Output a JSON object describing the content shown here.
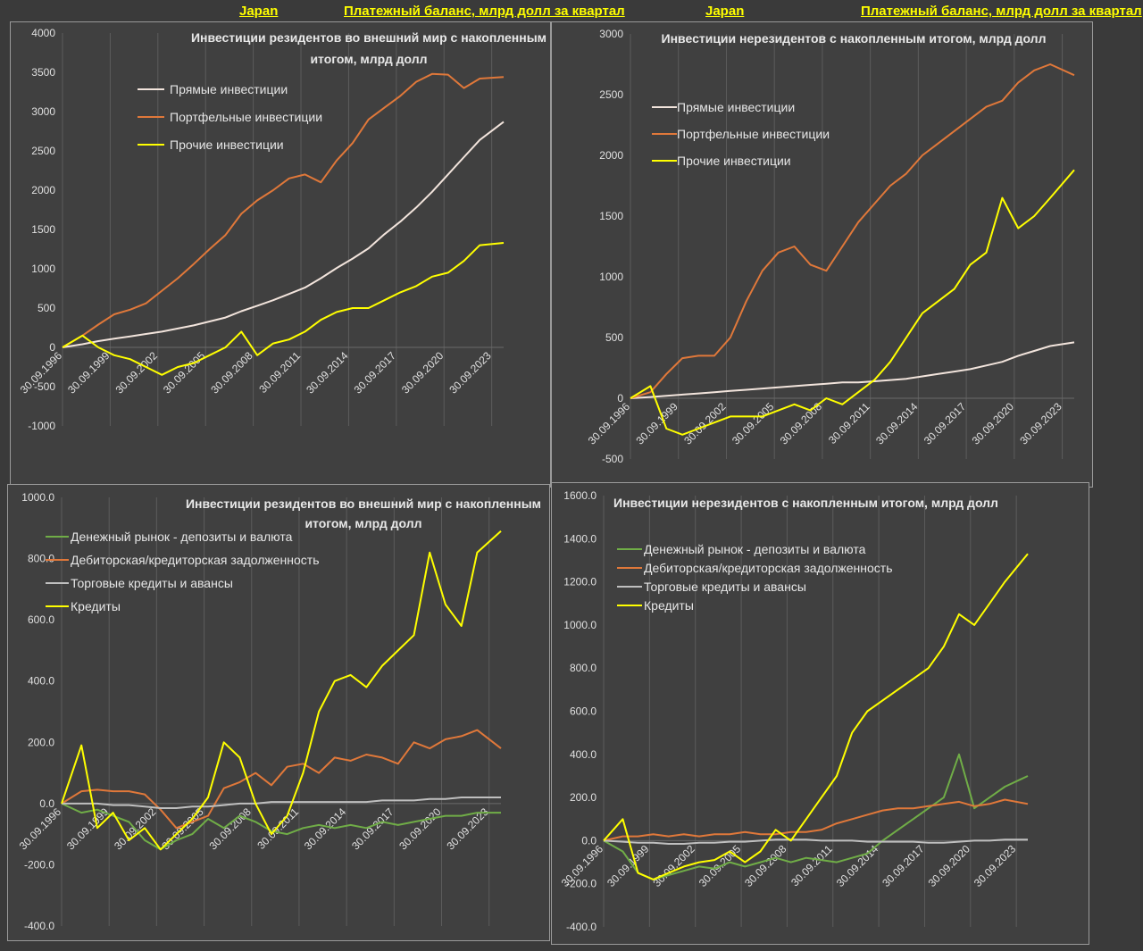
{
  "header": {
    "left_country": "Japan",
    "left_subtitle": "Платежный баланс, млрд долл за квартал",
    "right_country": "Japan",
    "right_subtitle": "Платежный баланс, млрд долл за квартал"
  },
  "colors": {
    "direct": "#f2e4dc",
    "portfolio": "#e0783a",
    "other": "#ffff00",
    "money_market": "#70ad47",
    "receivables": "#e0783a",
    "trade_credits": "#bfbfbf",
    "loans": "#ffff00"
  },
  "chart_data": [
    {
      "type": "line",
      "title": "Инвестиции резидентов во внешний мир с накопленным итогом, млрд долл",
      "ylim": [
        -1000,
        4000
      ],
      "yticks": [
        "4000",
        "3500",
        "3000",
        "2500",
        "2000",
        "1500",
        "1000",
        "500",
        "0",
        "-500",
        "-1000"
      ],
      "xticks": [
        "30.09.1996",
        "30.09.1999",
        "30.09.2002",
        "30.09.2005",
        "30.09.2008",
        "30.09.2011",
        "30.09.2014",
        "30.09.2017",
        "30.09.2020",
        "30.09.2023"
      ],
      "grid": "vertical",
      "legend": "top-left",
      "x": [
        1996.75,
        1998,
        1999,
        2000,
        2001,
        2002,
        2003,
        2004,
        2005,
        2006,
        2007,
        2008,
        2009,
        2010,
        2011,
        2012,
        2013,
        2014,
        2015,
        2016,
        2017,
        2018,
        2019,
        2020,
        2021,
        2022,
        2023,
        2024.5
      ],
      "series": [
        {
          "name": "Прямые инвестиции",
          "color_key": "direct",
          "values": [
            0,
            40,
            80,
            110,
            140,
            170,
            200,
            240,
            280,
            330,
            380,
            460,
            530,
            600,
            680,
            760,
            880,
            1010,
            1130,
            1260,
            1440,
            1600,
            1780,
            1980,
            2200,
            2420,
            2640,
            2870
          ]
        },
        {
          "name": "Портфельные инвестиции",
          "color_key": "portfolio",
          "values": [
            0,
            150,
            290,
            420,
            480,
            560,
            720,
            880,
            1060,
            1250,
            1430,
            1700,
            1870,
            2000,
            2150,
            2200,
            2100,
            2380,
            2600,
            2900,
            3050,
            3200,
            3380,
            3480,
            3470,
            3300,
            3420,
            3440
          ]
        },
        {
          "name": "Прочие инвестиции",
          "color_key": "other",
          "values": [
            0,
            150,
            0,
            -100,
            -150,
            -250,
            -350,
            -250,
            -200,
            -100,
            0,
            200,
            -100,
            50,
            100,
            200,
            350,
            450,
            500,
            500,
            600,
            700,
            780,
            900,
            950,
            1100,
            1300,
            1330
          ]
        }
      ]
    },
    {
      "type": "line",
      "title": "Инвестиции  нерезидентов с накопленным итогом, млрд долл",
      "ylim": [
        -500,
        3000
      ],
      "yticks": [
        "3000",
        "2500",
        "2000",
        "1500",
        "1000",
        "500",
        "0",
        "-500"
      ],
      "xticks": [
        "30.09.1996",
        "30.09.1999",
        "30.09.2002",
        "30.09.2005",
        "30.09.2008",
        "30.09.2011",
        "30.09.2014",
        "30.09.2017",
        "30.09.2020",
        "30.09.2023"
      ],
      "grid": "vertical",
      "legend": "top-left",
      "x": [
        1996.75,
        1998,
        1999,
        2000,
        2001,
        2002,
        2003,
        2004,
        2005,
        2006,
        2007,
        2008,
        2009,
        2010,
        2011,
        2012,
        2013,
        2014,
        2015,
        2016,
        2017,
        2018,
        2019,
        2020,
        2021,
        2022,
        2023,
        2024.5
      ],
      "series": [
        {
          "name": "Прямые инвестиции",
          "color_key": "direct",
          "values": [
            0,
            10,
            20,
            30,
            40,
            50,
            60,
            70,
            80,
            90,
            100,
            110,
            120,
            130,
            130,
            140,
            150,
            160,
            180,
            200,
            220,
            240,
            270,
            300,
            350,
            390,
            430,
            460
          ]
        },
        {
          "name": "Портфельные инвестиции",
          "color_key": "portfolio",
          "values": [
            0,
            50,
            200,
            330,
            350,
            350,
            500,
            800,
            1050,
            1200,
            1250,
            1100,
            1050,
            1250,
            1450,
            1600,
            1750,
            1850,
            2000,
            2100,
            2200,
            2300,
            2400,
            2450,
            2600,
            2700,
            2750,
            2660
          ]
        },
        {
          "name": "Прочие инвестиции",
          "color_key": "other",
          "values": [
            0,
            100,
            -250,
            -300,
            -250,
            -200,
            -150,
            -150,
            -150,
            -100,
            -50,
            -100,
            0,
            -50,
            50,
            150,
            300,
            500,
            700,
            800,
            900,
            1100,
            1200,
            1650,
            1400,
            1500,
            1650,
            1880
          ]
        }
      ]
    },
    {
      "type": "line",
      "title": "Инвестиции резидентов во внешний мир с накопленным итогом, млрд долл",
      "ylim": [
        -400,
        1000
      ],
      "yticks": [
        "1000.0",
        "800.0",
        "600.0",
        "400.0",
        "200.0",
        "0.0",
        "-200.0",
        "-400.0"
      ],
      "xticks": [
        "30.09.1996",
        "30.09.1999",
        "30.09.2002",
        "30.09.2005",
        "30.09.2008",
        "30.09.2011",
        "30.09.2014",
        "30.09.2017",
        "30.09.2020",
        "30.09.2023"
      ],
      "grid": "vertical",
      "legend": "top-left",
      "x": [
        1996.75,
        1998,
        1999,
        2000,
        2001,
        2002,
        2003,
        2004,
        2005,
        2006,
        2007,
        2008,
        2009,
        2010,
        2011,
        2012,
        2013,
        2014,
        2015,
        2016,
        2017,
        2018,
        2019,
        2020,
        2021,
        2022,
        2023,
        2024.5
      ],
      "series": [
        {
          "name": "Денежный рынок - депозиты и валюта",
          "color_key": "money_market",
          "values": [
            0,
            -30,
            -20,
            -40,
            -60,
            -120,
            -150,
            -120,
            -100,
            -50,
            -80,
            -40,
            -60,
            -90,
            -100,
            -80,
            -70,
            -80,
            -70,
            -80,
            -60,
            -70,
            -60,
            -50,
            -40,
            -40,
            -30,
            -30
          ]
        },
        {
          "name": "Дебиторская/кредиторская задолженность",
          "color_key": "receivables",
          "values": [
            0,
            40,
            45,
            40,
            40,
            30,
            -20,
            -80,
            -60,
            -40,
            50,
            70,
            100,
            60,
            120,
            130,
            100,
            150,
            140,
            160,
            150,
            130,
            200,
            180,
            210,
            220,
            240,
            180
          ]
        },
        {
          "name": "Торговые кредиты и авансы",
          "color_key": "trade_credits",
          "values": [
            0,
            0,
            0,
            -5,
            -5,
            -10,
            -15,
            -15,
            -10,
            -10,
            -5,
            0,
            0,
            5,
            5,
            5,
            5,
            5,
            5,
            5,
            10,
            10,
            10,
            15,
            15,
            20,
            20,
            20
          ]
        },
        {
          "name": "Кредиты",
          "color_key": "loans",
          "values": [
            0,
            190,
            -80,
            -30,
            -120,
            -80,
            -150,
            -100,
            -50,
            20,
            200,
            150,
            0,
            -100,
            -40,
            100,
            300,
            400,
            420,
            380,
            450,
            500,
            550,
            820,
            650,
            580,
            820,
            890
          ]
        }
      ]
    },
    {
      "type": "line",
      "title": "Инвестиции нерезидентов с накопленным итогом, млрд долл",
      "ylim": [
        -400,
        1600
      ],
      "yticks": [
        "1600.0",
        "1400.0",
        "1200.0",
        "1000.0",
        "800.0",
        "600.0",
        "400.0",
        "200.0",
        "0.0",
        "-200.0",
        "-400.0"
      ],
      "xticks": [
        "30.09.1996",
        "30.09.1999",
        "30.09.2002",
        "30.09.2005",
        "30.09.2008",
        "30.09.2011",
        "30.09.2014",
        "30.09.2017",
        "30.09.2020",
        "30.09.2023"
      ],
      "grid": "vertical",
      "legend": "top-left",
      "x": [
        1996.75,
        1998,
        1999,
        2000,
        2001,
        2002,
        2003,
        2004,
        2005,
        2006,
        2007,
        2008,
        2009,
        2010,
        2011,
        2012,
        2013,
        2014,
        2015,
        2016,
        2017,
        2018,
        2019,
        2020,
        2021,
        2022,
        2023,
        2024.5
      ],
      "series": [
        {
          "name": "Денежный рынок - депозиты и валюта",
          "color_key": "money_market",
          "values": [
            0,
            -50,
            -150,
            -180,
            -160,
            -140,
            -120,
            -130,
            -100,
            -120,
            -100,
            -80,
            -100,
            -80,
            -90,
            -100,
            -80,
            -60,
            0,
            50,
            100,
            150,
            200,
            400,
            150,
            200,
            250,
            300
          ]
        },
        {
          "name": "Дебиторская/кредиторская задолженность",
          "color_key": "receivables",
          "values": [
            0,
            20,
            20,
            30,
            20,
            30,
            20,
            30,
            30,
            40,
            30,
            30,
            40,
            40,
            50,
            80,
            100,
            120,
            140,
            150,
            150,
            160,
            170,
            180,
            160,
            170,
            190,
            170
          ]
        },
        {
          "name": "Торговые кредиты и авансы",
          "color_key": "trade_credits",
          "values": [
            0,
            -5,
            -10,
            -10,
            -15,
            -15,
            -10,
            -10,
            -5,
            -5,
            0,
            5,
            5,
            5,
            0,
            0,
            0,
            -5,
            -5,
            -5,
            -5,
            -10,
            -10,
            -5,
            0,
            0,
            5,
            5
          ]
        },
        {
          "name": "Кредиты",
          "color_key": "loans",
          "values": [
            0,
            100,
            -150,
            -180,
            -150,
            -120,
            -100,
            -90,
            -50,
            -100,
            -50,
            50,
            0,
            100,
            200,
            300,
            500,
            600,
            650,
            700,
            750,
            800,
            900,
            1050,
            1000,
            1100,
            1200,
            1330
          ]
        }
      ]
    }
  ]
}
